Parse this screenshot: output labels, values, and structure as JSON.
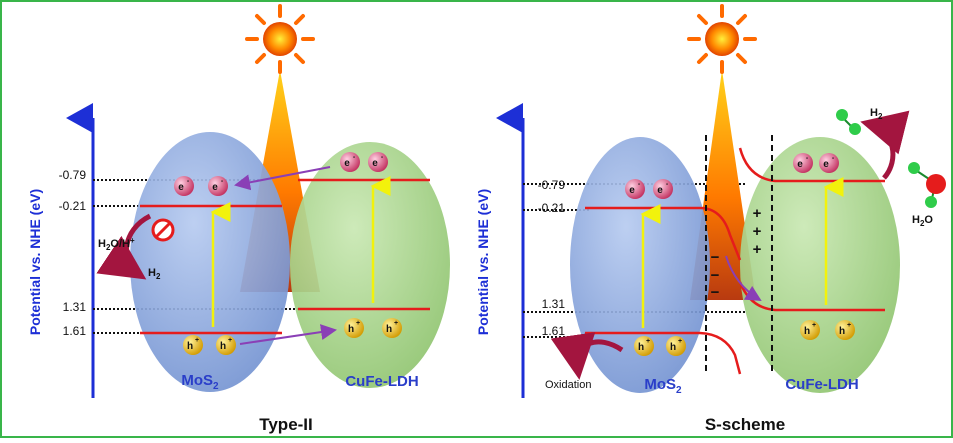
{
  "colors": {
    "frame": "#39b54a",
    "axis": "#1d2fd6",
    "band": "#e51c1c",
    "mos2": "#7f9fd8",
    "ldh": "#9fd07f",
    "transfer_arrow": "#8a3fb6",
    "excitation_arrow": "#f2f20c",
    "electron": "#d9467a",
    "hole": "#e0b40f",
    "curved_arrow": "#a3153f"
  },
  "panels": [
    {
      "title": "Type-II",
      "axis_label": "Potential vs. NHE (eV)",
      "levels": [
        "-0.79",
        "-0.21",
        "1.31",
        "1.61"
      ],
      "left_semiconductor": "MoS",
      "left_subscript": "2",
      "right_semiconductor": "CuFe-LDH",
      "electron": "e",
      "electron_sup": "-",
      "hole": "h",
      "hole_sup": "+",
      "reaction_reactant": "H",
      "reaction_reactant_sub": "2",
      "reaction_reactant_rest": "O/H",
      "reaction_reactant_sup": "+",
      "reaction_product": "H",
      "reaction_product_sub": "2"
    },
    {
      "title": "S-scheme",
      "axis_label": "Potential vs. NHE (eV)",
      "levels": [
        "-0.79",
        "-0.21",
        "1.31",
        "1.61"
      ],
      "left_semiconductor": "MoS",
      "left_subscript": "2",
      "right_semiconductor": "CuFe-LDH",
      "electron": "e",
      "electron_sup": "-",
      "hole": "h",
      "hole_sup": "+",
      "oxidation": "Oxidation",
      "plus": "+",
      "minus": "−",
      "h2_product": "H",
      "h2_product_sub": "2",
      "water": "H",
      "water_sub": "2",
      "water_rest": "O"
    }
  ]
}
